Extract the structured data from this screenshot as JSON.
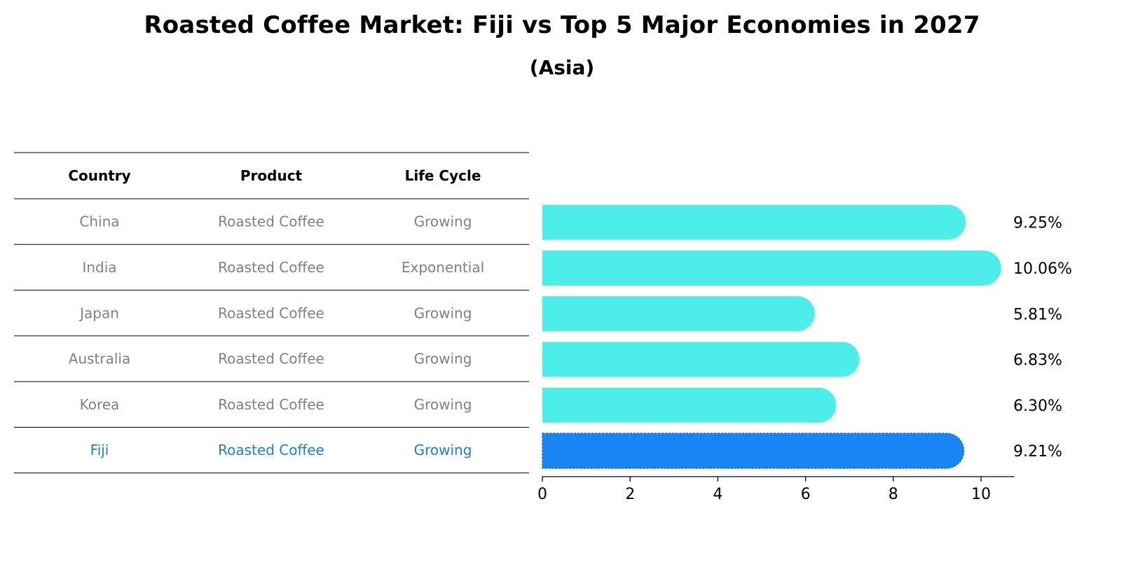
{
  "chart_data": {
    "type": "bar",
    "orientation": "horizontal",
    "title": "Roasted Coffee Market: Fiji vs Top 5 Major Economies in 2027",
    "subtitle": "(Asia)",
    "table": {
      "headers": [
        "Country",
        "Product",
        "Life Cycle"
      ],
      "rows": [
        [
          "China",
          "Roasted Coffee",
          "Growing"
        ],
        [
          "India",
          "Roasted Coffee",
          "Exponential"
        ],
        [
          "Japan",
          "Roasted Coffee",
          "Growing"
        ],
        [
          "Australia",
          "Roasted Coffee",
          "Growing"
        ],
        [
          "Korea",
          "Roasted Coffee",
          "Growing"
        ],
        [
          "Fiji",
          "Roasted Coffee",
          "Growing"
        ]
      ],
      "highlight_row": 5
    },
    "categories": [
      "China",
      "India",
      "Japan",
      "Australia",
      "Korea",
      "Fiji"
    ],
    "values": [
      9.25,
      10.06,
      5.81,
      6.83,
      6.3,
      9.21
    ],
    "value_labels": [
      "9.25%",
      "10.06%",
      "5.81%",
      "6.83%",
      "6.30%",
      "9.21%"
    ],
    "xlim": [
      0,
      10.6
    ],
    "xticks": [
      0,
      2,
      4,
      6,
      8,
      10
    ],
    "xtick_labels": [
      "0",
      "2",
      "4",
      "6",
      "8",
      "10"
    ],
    "colors": {
      "bar": "#4deee9",
      "highlight_bar": "#1985f5",
      "highlight_text": "#1a7fd4",
      "muted_text": "#808080"
    }
  }
}
